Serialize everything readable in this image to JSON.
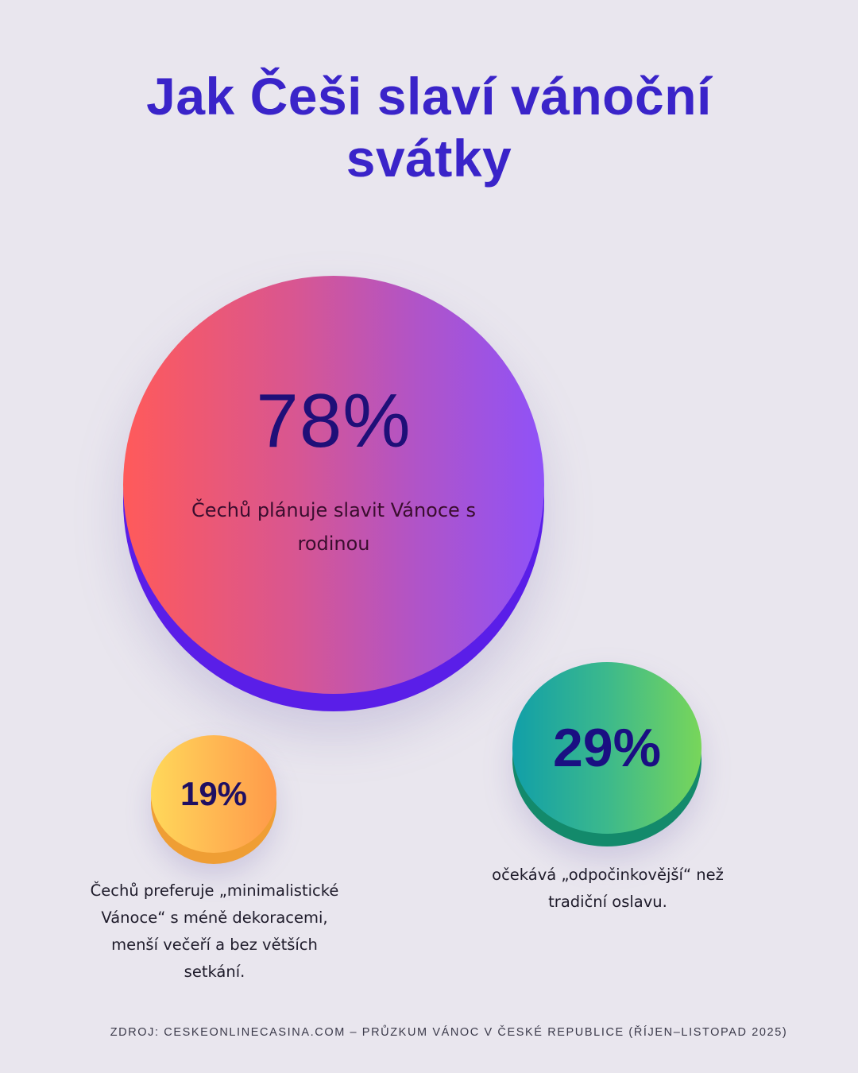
{
  "title": {
    "line1": "Jak Češi slaví vánoční",
    "line2": "svátky"
  },
  "stats": [
    {
      "value": "78%",
      "description": "Čechů plánuje slavit Vánoce s rodinou",
      "color_from": "#ff5a5a",
      "color_to": "#8f52f8",
      "depth_color": "#5a1ee8"
    },
    {
      "value": "19%",
      "description": "Čechů preferuje „minimalistické Vánoce“ s méně dekoracemi, menší večeří a bez větších setkání.",
      "color_from": "#ffd85a",
      "color_to": "#ff9a4a",
      "depth_color": "#ef9e34"
    },
    {
      "value": "29%",
      "description": "očekává „odpočinkovější“ než tradiční oslavu.",
      "color_from": "#119fa8",
      "color_to": "#78d65a",
      "depth_color": "#138a6b"
    }
  ],
  "source": "ZDROJ: CESKEONLINECASINA.COM – PRŮZKUM VÁNOC V ČESKÉ REPUBLICE (ŘÍJEN–LISTOPAD 2025)",
  "colors": {
    "background": "#e9e6ee",
    "title": "#3a24c9",
    "number_text": "#1f0f78"
  },
  "chart_data": {
    "type": "bubble",
    "title": "Jak Češi slaví vánoční svátky",
    "categories": [
      "Čechů plánuje slavit Vánoce s rodinou",
      "Čechů preferuje „minimalistické Vánoce“ s méně dekoracemi, menší večeří a bez větších setkání.",
      "očekává „odpočinkovější“ než tradiční oslavu."
    ],
    "values": [
      78,
      19,
      29
    ],
    "unit": "%",
    "xlabel": "",
    "ylabel": "",
    "grid": false,
    "legend": "none",
    "source": "ZDROJ: CESKEONLINECASINA.COM – PRŮZKUM VÁNOC V ČESKÉ REPUBLICE (ŘÍJEN–LISTOPAD 2025)"
  }
}
